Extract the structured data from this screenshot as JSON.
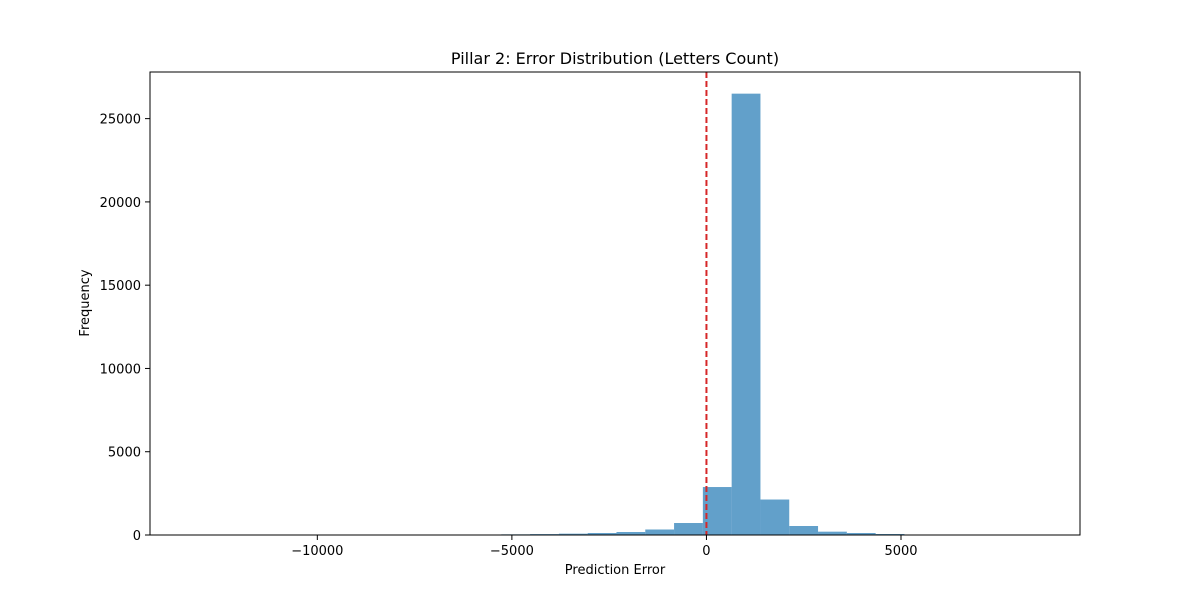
{
  "chart_data": {
    "type": "bar",
    "title": "Pillar 2: Error Distribution (Letters Count)",
    "xlabel": "Prediction Error",
    "ylabel": "Frequency",
    "xlim": [
      -14300,
      9600
    ],
    "ylim": [
      0,
      27800
    ],
    "xticks": [
      -10000,
      -5000,
      0,
      5000
    ],
    "xtick_labels": [
      "−10000",
      "−5000",
      "0",
      "5000"
    ],
    "yticks": [
      0,
      5000,
      10000,
      15000,
      20000,
      25000
    ],
    "ytick_labels": [
      "0",
      "5000",
      "10000",
      "15000",
      "20000",
      "25000"
    ],
    "bin_width": 740,
    "bin_starts": [
      -6752,
      -6012,
      -5272,
      -4532,
      -3792,
      -3052,
      -2312,
      -1572,
      -832,
      -92,
      648,
      1388,
      2128,
      2868,
      3608,
      4348,
      5088
    ],
    "values": [
      15,
      25,
      40,
      55,
      80,
      120,
      180,
      330,
      720,
      2880,
      26500,
      2130,
      540,
      200,
      120,
      60,
      20
    ],
    "reference_line": {
      "x": 0,
      "color": "#d62728",
      "style": "dashed"
    },
    "bar_color": "#1f77b4",
    "bar_opacity": 0.7,
    "grid": false,
    "legend": "none"
  }
}
